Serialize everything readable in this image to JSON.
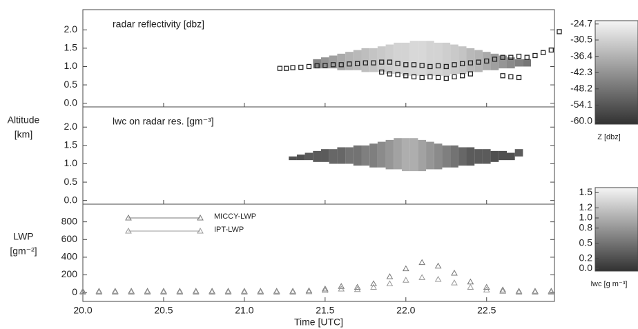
{
  "chart_data": [
    {
      "type": "column-field",
      "label": "radar reflectivity [dbz]",
      "xlim": [
        20,
        22.92
      ],
      "xticks": [
        {
          "value": 20,
          "label": "20.0"
        },
        20.5,
        {
          "value": 21,
          "label": "21.0"
        },
        21.5,
        {
          "value": 22,
          "label": "22.0"
        },
        22.5
      ],
      "ylim": [
        -0.1,
        2.55
      ],
      "yticks": [
        {
          "value": 0,
          "label": "0.0"
        },
        0.5,
        {
          "value": 1,
          "label": "1.0"
        },
        1.5,
        {
          "value": 2,
          "label": "2.0"
        }
      ],
      "field": {
        "x": [
          21.45,
          21.5,
          21.55,
          21.6,
          21.65,
          21.7,
          21.75,
          21.8,
          21.85,
          21.9,
          21.95,
          22.0,
          22.05,
          22.1,
          22.15,
          22.2,
          22.25,
          22.3,
          22.35,
          22.4,
          22.45,
          22.5,
          22.55,
          22.6,
          22.65,
          22.7,
          22.75
        ],
        "bottom": [
          0.95,
          0.95,
          0.95,
          0.9,
          0.9,
          0.9,
          0.85,
          0.85,
          0.85,
          0.8,
          0.8,
          0.75,
          0.75,
          0.75,
          0.75,
          0.75,
          0.75,
          0.8,
          0.8,
          0.85,
          0.85,
          0.9,
          0.9,
          0.95,
          0.95,
          1.0,
          1.0
        ],
        "top": [
          1.2,
          1.25,
          1.3,
          1.35,
          1.4,
          1.45,
          1.5,
          1.5,
          1.55,
          1.6,
          1.65,
          1.65,
          1.7,
          1.7,
          1.7,
          1.65,
          1.65,
          1.6,
          1.55,
          1.5,
          1.45,
          1.4,
          1.35,
          1.3,
          1.25,
          1.2,
          1.2
        ],
        "z": [
          -45,
          -42,
          -40,
          -38,
          -36,
          -35,
          -34,
          -33,
          -32,
          -31,
          -30,
          -30,
          -29,
          -29,
          -30,
          -30,
          -31,
          -32,
          -33,
          -35,
          -36,
          -38,
          -40,
          -42,
          -44,
          -46,
          -48
        ]
      },
      "points": {
        "color": "#222",
        "x": [
          21.22,
          21.26,
          21.3,
          21.35,
          21.4,
          21.45,
          21.5,
          21.55,
          21.6,
          21.65,
          21.7,
          21.75,
          21.8,
          21.85,
          21.9,
          21.95,
          22.0,
          22.05,
          22.1,
          22.15,
          22.2,
          22.25,
          22.3,
          22.35,
          22.4,
          22.45,
          22.5,
          22.55,
          22.6,
          22.65,
          22.7,
          22.75,
          22.8,
          22.85,
          22.9,
          22.95,
          21.85,
          21.9,
          21.95,
          22.0,
          22.05,
          22.1,
          22.15,
          22.2,
          22.25,
          22.3,
          22.35,
          22.4,
          22.6,
          22.65,
          22.7
        ],
        "y": [
          0.95,
          0.95,
          0.97,
          0.98,
          1.0,
          1.02,
          1.03,
          1.05,
          1.05,
          1.07,
          1.08,
          1.1,
          1.1,
          1.12,
          1.12,
          1.08,
          1.05,
          1.05,
          1.03,
          1.0,
          1.02,
          1.0,
          1.05,
          1.08,
          1.1,
          1.12,
          1.15,
          1.2,
          1.25,
          1.25,
          1.28,
          1.25,
          1.3,
          1.38,
          1.45,
          1.95,
          0.85,
          0.8,
          0.78,
          0.75,
          0.72,
          0.7,
          0.72,
          0.7,
          0.68,
          0.72,
          0.75,
          0.8,
          0.75,
          0.72,
          0.7
        ]
      },
      "colorbar": {
        "label": "Z [dbz]",
        "lim": [
          -61,
          -23.5
        ],
        "ticks": [
          -24.7,
          -30.5,
          -36.4,
          -42.3,
          -48.2,
          -54.1,
          {
            "value": -60,
            "label": "-60.0"
          }
        ]
      }
    },
    {
      "type": "column-field",
      "label": "lwc on radar res. [gm⁻³]",
      "ylabel": [
        "Altitude",
        "[km]"
      ],
      "xlim": [
        20,
        22.92
      ],
      "xticks": [
        {
          "value": 20,
          "label": "20.0"
        },
        20.5,
        {
          "value": 21,
          "label": "21.0"
        },
        21.5,
        {
          "value": 22,
          "label": "22.0"
        },
        22.5
      ],
      "ylim": [
        -0.1,
        2.55
      ],
      "yticks": [
        {
          "value": 0,
          "label": "0.0"
        },
        0.5,
        {
          "value": 1,
          "label": "1.0"
        },
        1.5,
        {
          "value": 2,
          "label": "2.0"
        }
      ],
      "field": {
        "x": [
          21.3,
          21.35,
          21.4,
          21.45,
          21.5,
          21.55,
          21.6,
          21.65,
          21.7,
          21.75,
          21.8,
          21.85,
          21.9,
          21.95,
          22.0,
          22.05,
          22.1,
          22.15,
          22.2,
          22.25,
          22.3,
          22.35,
          22.4,
          22.45,
          22.5,
          22.55,
          22.6,
          22.65,
          22.7
        ],
        "bottom": [
          1.1,
          1.1,
          1.1,
          1.05,
          1.05,
          1.0,
          1.0,
          1.0,
          0.95,
          0.95,
          0.9,
          0.9,
          0.85,
          0.85,
          0.8,
          0.8,
          0.8,
          0.85,
          0.85,
          0.9,
          0.9,
          0.95,
          0.95,
          1.0,
          1.0,
          1.05,
          1.1,
          1.1,
          1.2
        ],
        "top": [
          1.2,
          1.25,
          1.3,
          1.35,
          1.4,
          1.4,
          1.45,
          1.45,
          1.5,
          1.5,
          1.55,
          1.6,
          1.65,
          1.7,
          1.7,
          1.7,
          1.65,
          1.6,
          1.55,
          1.5,
          1.5,
          1.45,
          1.45,
          1.4,
          1.4,
          1.35,
          1.35,
          1.3,
          1.4
        ],
        "z": [
          0.2,
          0.2,
          0.3,
          0.3,
          0.3,
          0.4,
          0.4,
          0.5,
          0.5,
          0.6,
          0.6,
          0.7,
          0.8,
          0.9,
          1.0,
          1.0,
          0.9,
          0.8,
          0.7,
          0.6,
          0.5,
          0.4,
          0.3,
          0.3,
          0.3,
          0.2,
          0.2,
          0.2,
          0.3
        ]
      },
      "colorbar": {
        "label": "lwc [g m⁻³]",
        "lim": [
          -0.05,
          1.6
        ],
        "ticks": [
          1.5,
          1.2,
          {
            "value": 1,
            "label": "1.0"
          },
          0.8,
          0.5,
          0.2,
          {
            "value": 0,
            "label": "0.0"
          }
        ]
      }
    },
    {
      "type": "scatter",
      "ylabel": [
        "LWP",
        "[gm⁻²]"
      ],
      "xlabel": "Time [UTC]",
      "xlim": [
        20,
        22.92
      ],
      "xticks": [
        {
          "value": 20,
          "label": "20.0"
        },
        20.5,
        {
          "value": 21,
          "label": "21.0"
        },
        21.5,
        {
          "value": 22,
          "label": "22.0"
        },
        22.5
      ],
      "ylim": [
        -100,
        1000
      ],
      "yticks": [
        0,
        200,
        400,
        600,
        800
      ],
      "x": [
        20.0,
        20.1,
        20.2,
        20.3,
        20.4,
        20.5,
        20.6,
        20.7,
        20.8,
        20.9,
        21.0,
        21.1,
        21.2,
        21.3,
        21.4,
        21.5,
        21.6,
        21.7,
        21.8,
        21.9,
        22.0,
        22.1,
        22.2,
        22.3,
        22.4,
        22.5,
        22.6,
        22.7,
        22.8,
        22.9
      ],
      "series": [
        {
          "name": "MICCY-LWP",
          "color": "#777",
          "values": [
            15,
            15,
            15,
            15,
            15,
            15,
            15,
            15,
            15,
            15,
            15,
            15,
            15,
            15,
            20,
            40,
            70,
            60,
            100,
            180,
            270,
            340,
            300,
            220,
            120,
            60,
            30,
            15,
            15,
            15
          ]
        },
        {
          "name": "IPT-LWP",
          "color": "#999",
          "values": [
            5,
            5,
            5,
            5,
            5,
            5,
            5,
            5,
            5,
            5,
            5,
            5,
            5,
            5,
            10,
            25,
            40,
            35,
            60,
            100,
            140,
            170,
            150,
            110,
            60,
            30,
            15,
            5,
            5,
            5
          ]
        }
      ]
    }
  ]
}
